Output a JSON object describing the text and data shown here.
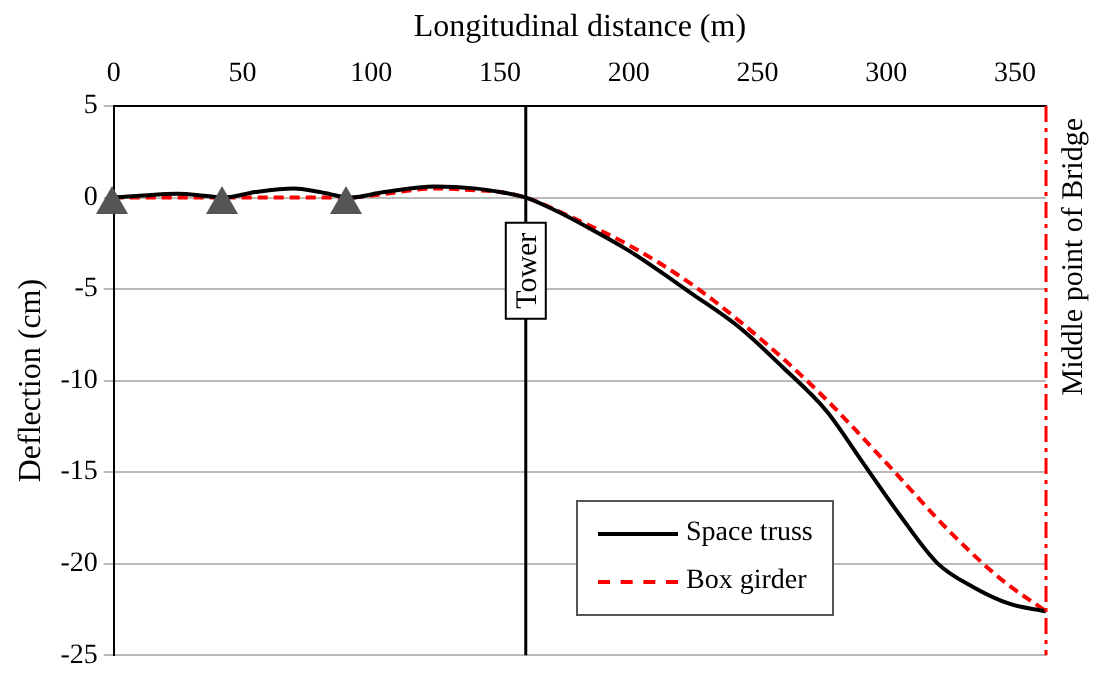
{
  "chart_data": {
    "type": "line",
    "xlabel": "Longitudinal distance (m)",
    "ylabel": "Deflection (cm)",
    "xlim": [
      0,
      362
    ],
    "xticks": [
      0,
      50,
      100,
      150,
      200,
      250,
      300,
      350
    ],
    "ylim": [
      -25,
      5
    ],
    "yticks": [
      5,
      0,
      -5,
      -10,
      -15,
      -20,
      -25
    ],
    "series": [
      {
        "name": "Space truss",
        "color": "#000000",
        "line_style": "solid",
        "x": [
          0,
          10,
          25,
          35,
          43,
          55,
          70,
          80,
          92,
          105,
          125,
          140,
          150,
          160,
          170,
          185,
          200,
          225,
          243,
          260,
          277,
          290,
          305,
          320,
          334,
          348,
          362
        ],
        "values": [
          0,
          0.1,
          0.2,
          0.1,
          0,
          0.3,
          0.5,
          0.3,
          0,
          0.3,
          0.6,
          0.5,
          0.3,
          0,
          -0.6,
          -1.7,
          -2.9,
          -5.3,
          -7.1,
          -9.3,
          -11.7,
          -14.3,
          -17.3,
          -20,
          -21.3,
          -22.2,
          -22.6
        ]
      },
      {
        "name": "Box girder",
        "color": "#ff0000",
        "line_style": "dashed",
        "x": [
          0,
          43,
          92,
          105,
          125,
          140,
          150,
          160,
          175,
          200,
          225,
          251,
          275,
          300,
          325,
          345,
          362
        ],
        "values": [
          0,
          0,
          0,
          0.2,
          0.5,
          0.4,
          0.3,
          0,
          -0.9,
          -2.6,
          -4.8,
          -7.7,
          -10.8,
          -14.5,
          -18.3,
          -20.9,
          -22.6
        ]
      }
    ],
    "ref_lines": [
      {
        "axis": "x",
        "value": 160,
        "label": "Tower",
        "color": "#000000",
        "line_style": "solid"
      },
      {
        "axis": "x",
        "value": 362,
        "label": "Middle point of Bridge",
        "color": "#ff0000",
        "line_style": "dashdot"
      }
    ],
    "grid": "y",
    "legend": "bottom right",
    "marker": "none"
  }
}
